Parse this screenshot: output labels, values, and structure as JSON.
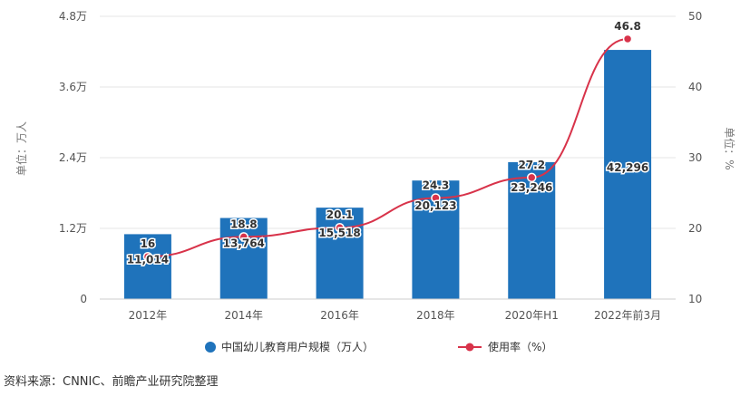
{
  "chart_data": {
    "type": "bar+line",
    "categories": [
      "2012年",
      "2014年",
      "2016年",
      "2018年",
      "2020年H1",
      "2022年前3月"
    ],
    "series": [
      {
        "name": "中国幼儿教育用户规模（万人）",
        "type": "bar",
        "axis": "left",
        "values": [
          11014,
          13764,
          15518,
          20123,
          23246,
          42296
        ],
        "labels": [
          "11,014",
          "13,764",
          "15,518",
          "20,123",
          "23,246",
          "42,296"
        ]
      },
      {
        "name": "使用率（%）",
        "type": "line",
        "axis": "right",
        "values": [
          16,
          18.8,
          20.1,
          24.3,
          27.2,
          46.8
        ],
        "labels": [
          "16",
          "18.8",
          "20.1",
          "24.3",
          "27.2",
          "46.8"
        ]
      }
    ],
    "y_left": {
      "label": "单位：万人",
      "ylim": [
        0,
        48000
      ],
      "ticks": [
        0,
        12000,
        24000,
        36000,
        48000
      ],
      "tick_labels": [
        "0",
        "1.2万",
        "2.4万",
        "3.6万",
        "4.8万"
      ]
    },
    "y_right": {
      "label": "单位：%",
      "ylim": [
        10,
        50
      ],
      "ticks": [
        10,
        20,
        30,
        40,
        50
      ],
      "tick_labels": [
        "10",
        "20",
        "30",
        "40",
        "50"
      ]
    },
    "grid": true,
    "legend": "bottom",
    "colors": {
      "bar": "#1f73bb",
      "line": "#d8334a",
      "grid": "#e6e6e6"
    }
  },
  "source_note": "资料来源：CNNIC、前瞻产业研究院整理"
}
